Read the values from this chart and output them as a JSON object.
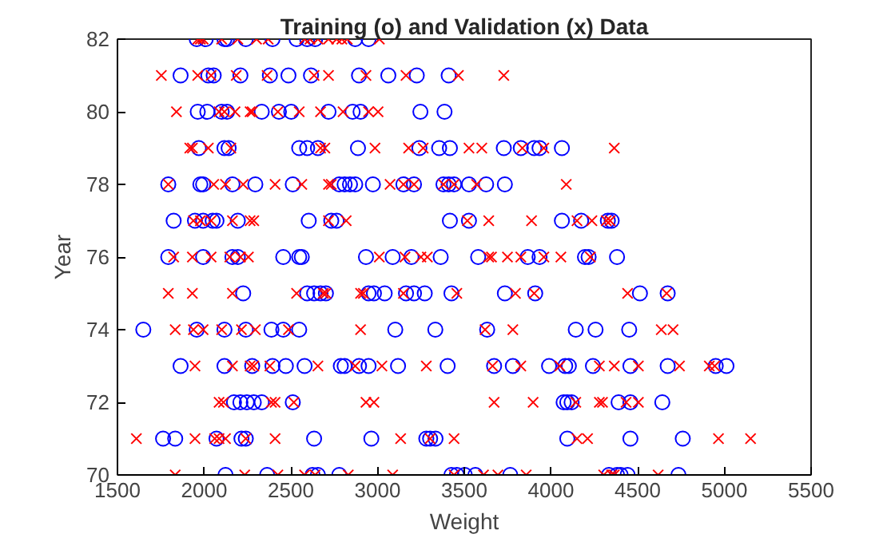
{
  "chart_data": {
    "type": "scatter",
    "title": "Training (o) and Validation (x) Data",
    "xlabel": "Weight",
    "ylabel": "Year",
    "xlim": [
      1500,
      5500
    ],
    "xticks": [
      1500,
      2000,
      2500,
      3000,
      3500,
      4000,
      4500,
      5000,
      5500
    ],
    "ylim": [
      70,
      82
    ],
    "yticks": [
      70,
      72,
      74,
      76,
      78,
      80,
      82
    ],
    "grid": false,
    "series": [
      {
        "color": "#0000ff",
        "marker": "circle",
        "x": [
          1957,
          2009,
          2117,
          2132,
          2240,
          2394,
          2533,
          2594,
          2640,
          2871,
          2948,
          1864,
          2024,
          2055,
          2209,
          2379,
          2486,
          2616,
          2893,
          3062,
          3226,
          3410,
          1963,
          2018,
          2101,
          2132,
          2332,
          2431,
          2502,
          2717,
          2856,
          2902,
          3247,
          3386,
          1969,
          2117,
          2141,
          2548,
          2594,
          2656,
          2887,
          3241,
          3355,
          3417,
          3728,
          3826,
          3903,
          3934,
          4063,
          1793,
          1978,
          1994,
          2163,
          2295,
          2511,
          2779,
          2810,
          2841,
          2871,
          2973,
          3149,
          3210,
          3380,
          3410,
          3441,
          3527,
          3626,
          3734,
          1824,
          1947,
          1994,
          2049,
          2071,
          2194,
          2603,
          2733,
          2764,
          3417,
          3527,
          4063,
          4174,
          4328,
          4350,
          1793,
          1994,
          2163,
          2194,
          2456,
          2548,
          2563,
          2933,
          3087,
          3195,
          3364,
          3580,
          3866,
          3934,
          4196,
          4217,
          4381,
          2225,
          2594,
          2634,
          2671,
          2702,
          2948,
          2979,
          3041,
          3164,
          3210,
          3272,
          3426,
          3734,
          3909,
          4513,
          4673,
          1649,
          1957,
          2117,
          2240,
          2388,
          2456,
          2548,
          3102,
          3333,
          3632,
          4143,
          4257,
          4451,
          1864,
          2117,
          2277,
          2394,
          2471,
          2579,
          2788,
          2810,
          2893,
          2948,
          3118,
          3404,
          3672,
          3780,
          3989,
          4082,
          4103,
          4242,
          4458,
          4673,
          4950,
          5012,
          2172,
          2209,
          2246,
          2286,
          2332,
          2511,
          4073,
          4094,
          4119,
          4390,
          4458,
          4642,
          1763,
          1833,
          2071,
          2215,
          2240,
          2634,
          2964,
          3281,
          3303,
          3334,
          4094,
          4458,
          4760,
          2123,
          2363,
          2625,
          2656,
          2779,
          3426,
          3457,
          3503,
          3564,
          3765,
          4334,
          4381,
          4402,
          4442,
          4735
        ],
        "values": [
          82,
          82,
          82,
          82,
          82,
          82,
          82,
          82,
          82,
          82,
          82,
          81,
          81,
          81,
          81,
          81,
          81,
          81,
          81,
          81,
          81,
          81,
          80,
          80,
          80,
          80,
          80,
          80,
          80,
          80,
          80,
          80,
          80,
          80,
          79,
          79,
          79,
          79,
          79,
          79,
          79,
          79,
          79,
          79,
          79,
          79,
          79,
          79,
          79,
          78,
          78,
          78,
          78,
          78,
          78,
          78,
          78,
          78,
          78,
          78,
          78,
          78,
          78,
          78,
          78,
          78,
          78,
          78,
          77,
          77,
          77,
          77,
          77,
          77,
          77,
          77,
          77,
          77,
          77,
          77,
          77,
          77,
          77,
          76,
          76,
          76,
          76,
          76,
          76,
          76,
          76,
          76,
          76,
          76,
          76,
          76,
          76,
          76,
          76,
          76,
          75,
          75,
          75,
          75,
          75,
          75,
          75,
          75,
          75,
          75,
          75,
          75,
          75,
          75,
          75,
          75,
          74,
          74,
          74,
          74,
          74,
          74,
          74,
          74,
          74,
          74,
          74,
          74,
          74,
          73,
          73,
          73,
          73,
          73,
          73,
          73,
          73,
          73,
          73,
          73,
          73,
          73,
          73,
          73,
          73,
          73,
          73,
          73,
          73,
          73,
          73,
          72,
          72,
          72,
          72,
          72,
          72,
          72,
          72,
          72,
          72,
          72,
          72,
          71,
          71,
          71,
          71,
          71,
          71,
          71,
          71,
          71,
          71,
          71,
          71,
          71,
          70,
          70,
          70,
          70,
          70,
          70,
          70,
          70,
          70,
          70,
          70,
          70,
          70,
          70,
          70
        ]
      },
      {
        "color": "#ff0000",
        "marker": "cross",
        "x": [
          1963,
          1978,
          1994,
          2101,
          2194,
          2302,
          2369,
          2579,
          2610,
          2656,
          2717,
          2764,
          2794,
          2825,
          3010,
          1753,
          1963,
          2040,
          2185,
          2363,
          2634,
          2717,
          2933,
          3164,
          3466,
          3728,
          1840,
          2086,
          2117,
          2178,
          2265,
          2277,
          2425,
          2548,
          2671,
          2801,
          2948,
          3003,
          1917,
          1932,
          2024,
          2154,
          2671,
          2696,
          2985,
          3179,
          3263,
          3527,
          3601,
          3835,
          3959,
          4365,
          1793,
          2055,
          2123,
          2225,
          2409,
          2563,
          2717,
          2733,
          3072,
          3149,
          3210,
          3380,
          3441,
          3571,
          4088,
          1938,
          1978,
          2040,
          2163,
          2265,
          2286,
          2717,
          2819,
          3518,
          3641,
          3888,
          4150,
          4236,
          4319,
          4341,
          1824,
          1932,
          2040,
          2148,
          2209,
          2255,
          3010,
          3158,
          3250,
          3287,
          3641,
          3657,
          3749,
          3826,
          3959,
          4057,
          4227,
          1793,
          1932,
          2163,
          2533,
          2687,
          2702,
          2902,
          2918,
          3149,
          3457,
          3795,
          3903,
          4442,
          4667,
          1833,
          1938,
          1994,
          2101,
          2215,
          2295,
          2486,
          2902,
          3620,
          3780,
          4636,
          4704,
          1947,
          2163,
          2265,
          2286,
          2379,
          2656,
          2871,
          3025,
          3281,
          3663,
          3826,
          4051,
          4279,
          4365,
          4504,
          4741,
          4913,
          4944,
          2086,
          2111,
          2388,
          2409,
          2517,
          2933,
          2979,
          3672,
          3897,
          4143,
          4279,
          4297,
          4433,
          4504,
          1609,
          1947,
          2061,
          2086,
          2123,
          2240,
          2409,
          3133,
          3303,
          3441,
          4150,
          4211,
          4966,
          5151,
          1833,
          2234,
          2425,
          2579,
          2640,
          2831,
          3087,
          3441,
          3611,
          3694,
          3857,
          4304,
          4350,
          4365,
          4618
        ],
        "values": [
          82,
          82,
          82,
          82,
          82,
          82,
          82,
          82,
          82,
          82,
          82,
          82,
          82,
          82,
          82,
          81,
          81,
          81,
          81,
          81,
          81,
          81,
          81,
          81,
          81,
          81,
          80,
          80,
          80,
          80,
          80,
          80,
          80,
          80,
          80,
          80,
          80,
          80,
          79,
          79,
          79,
          79,
          79,
          79,
          79,
          79,
          79,
          79,
          79,
          79,
          79,
          79,
          78,
          78,
          78,
          78,
          78,
          78,
          78,
          78,
          78,
          78,
          78,
          78,
          78,
          78,
          78,
          77,
          77,
          77,
          77,
          77,
          77,
          77,
          77,
          77,
          77,
          77,
          77,
          77,
          77,
          77,
          76,
          76,
          76,
          76,
          76,
          76,
          76,
          76,
          76,
          76,
          76,
          76,
          76,
          76,
          76,
          76,
          76,
          75,
          75,
          75,
          75,
          75,
          75,
          75,
          75,
          75,
          75,
          75,
          75,
          75,
          75,
          74,
          74,
          74,
          74,
          74,
          74,
          74,
          74,
          74,
          74,
          74,
          74,
          73,
          73,
          73,
          73,
          73,
          73,
          73,
          73,
          73,
          73,
          73,
          73,
          73,
          73,
          73,
          73,
          73,
          73,
          72,
          72,
          72,
          72,
          72,
          72,
          72,
          72,
          72,
          72,
          72,
          72,
          72,
          72,
          71,
          71,
          71,
          71,
          71,
          71,
          71,
          71,
          71,
          71,
          71,
          71,
          71,
          71,
          70,
          70,
          70,
          70,
          70,
          70,
          70,
          70,
          70,
          70,
          70,
          70,
          70,
          70,
          70
        ]
      }
    ]
  }
}
